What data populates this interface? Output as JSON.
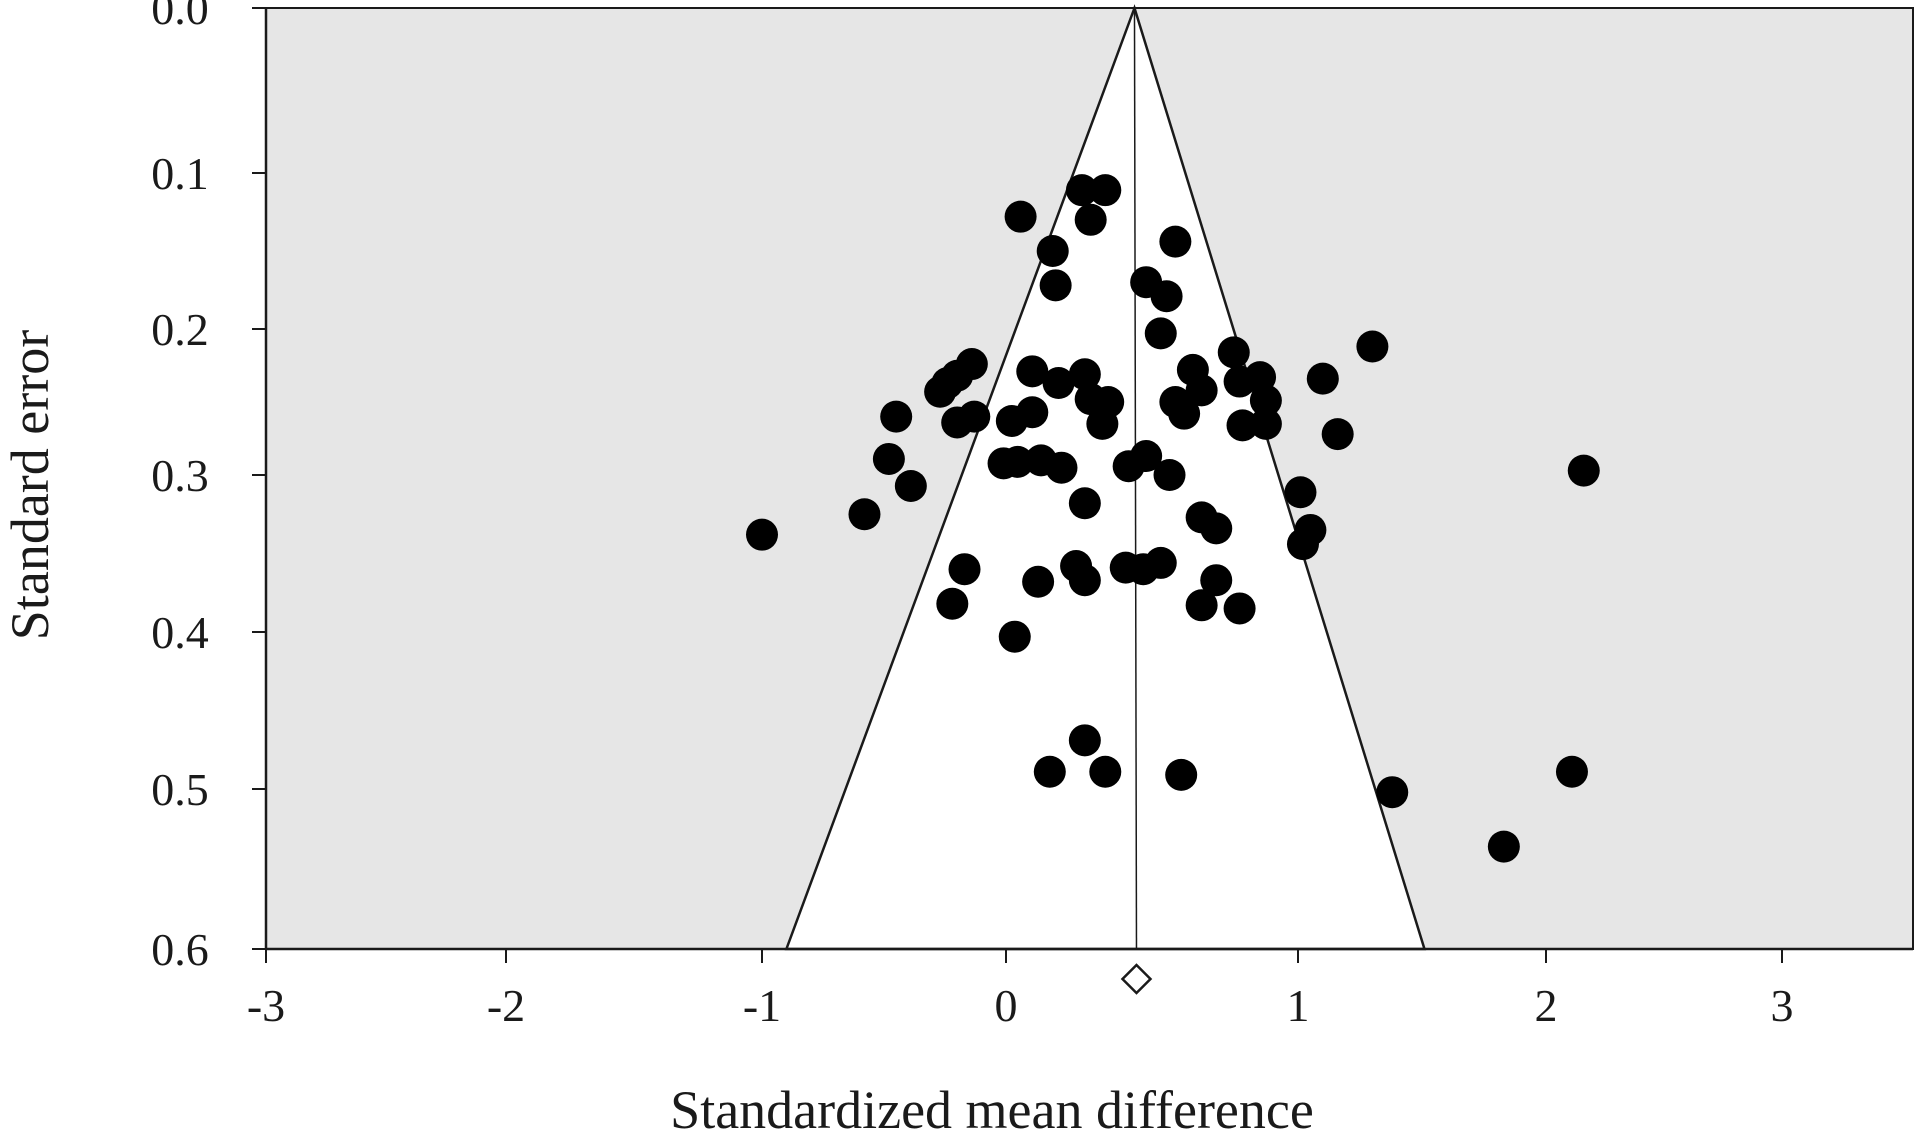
{
  "chart_data": {
    "type": "scatter",
    "subtype": "funnel-plot",
    "title": "",
    "xlabel": "Standardized mean difference",
    "ylabel": "Standard error",
    "xlim": [
      -3,
      3.5
    ],
    "ylim": [
      0,
      0.6
    ],
    "y_reversed": true,
    "x_ticks": [
      -3,
      -2,
      -1,
      0,
      1,
      2,
      3
    ],
    "x_tick_labels": [
      "-3",
      "-2",
      "-1",
      "0",
      "1",
      "2",
      "3"
    ],
    "y_ticks": [
      0,
      0.1,
      0.2,
      0.3,
      0.4,
      0.5,
      0.6
    ],
    "y_tick_labels": [
      "0.0",
      "0.1",
      "0.2",
      "0.3",
      "0.4",
      "0.5",
      "0.6"
    ],
    "pooled_estimate": 0.44,
    "funnel": {
      "apex": [
        0.44,
        0
      ],
      "base_left": [
        -0.9,
        0.6
      ],
      "base_right": [
        1.51,
        0.6
      ]
    },
    "colors": {
      "background": "#e6e6e6",
      "funnel_fill": "#ffffff",
      "points": "#000000",
      "lines": "#1a1a1a"
    },
    "points": [
      [
        0.26,
        0.111
      ],
      [
        0.34,
        0.111
      ],
      [
        0.05,
        0.128
      ],
      [
        0.29,
        0.13
      ],
      [
        0.58,
        0.144
      ],
      [
        0.16,
        0.15
      ],
      [
        0.17,
        0.172
      ],
      [
        0.48,
        0.17
      ],
      [
        0.55,
        0.179
      ],
      [
        0.53,
        0.203
      ],
      [
        1.3,
        0.212
      ],
      [
        0.78,
        0.216
      ],
      [
        -0.14,
        0.224
      ],
      [
        -0.2,
        0.232
      ],
      [
        0.09,
        0.229
      ],
      [
        0.27,
        0.231
      ],
      [
        0.64,
        0.228
      ],
      [
        0.87,
        0.233
      ],
      [
        1.1,
        0.234
      ],
      [
        -0.24,
        0.237
      ],
      [
        -0.27,
        0.243
      ],
      [
        0.18,
        0.237
      ],
      [
        0.8,
        0.236
      ],
      [
        0.67,
        0.242
      ],
      [
        0.29,
        0.248
      ],
      [
        0.35,
        0.25
      ],
      [
        0.58,
        0.25
      ],
      [
        0.89,
        0.249
      ],
      [
        -0.45,
        0.26
      ],
      [
        -0.2,
        0.264
      ],
      [
        -0.13,
        0.26
      ],
      [
        0.02,
        0.263
      ],
      [
        0.09,
        0.257
      ],
      [
        0.33,
        0.265
      ],
      [
        0.61,
        0.258
      ],
      [
        0.81,
        0.266
      ],
      [
        0.89,
        0.265
      ],
      [
        1.16,
        0.272
      ],
      [
        -0.48,
        0.289
      ],
      [
        -0.01,
        0.292
      ],
      [
        0.04,
        0.291
      ],
      [
        0.12,
        0.29
      ],
      [
        0.19,
        0.295
      ],
      [
        0.42,
        0.294
      ],
      [
        0.48,
        0.287
      ],
      [
        0.56,
        0.3
      ],
      [
        2.16,
        0.297
      ],
      [
        -0.39,
        0.307
      ],
      [
        -1.0,
        0.338
      ],
      [
        -0.58,
        0.325
      ],
      [
        1.01,
        0.311
      ],
      [
        0.27,
        0.318
      ],
      [
        0.67,
        0.327
      ],
      [
        0.72,
        0.334
      ],
      [
        1.05,
        0.335
      ],
      [
        1.02,
        0.344
      ],
      [
        -0.17,
        0.36
      ],
      [
        0.24,
        0.358
      ],
      [
        0.41,
        0.359
      ],
      [
        0.47,
        0.36
      ],
      [
        0.53,
        0.356
      ],
      [
        0.11,
        0.368
      ],
      [
        0.27,
        0.367
      ],
      [
        0.72,
        0.367
      ],
      [
        -0.22,
        0.382
      ],
      [
        0.67,
        0.383
      ],
      [
        0.8,
        0.385
      ],
      [
        0.03,
        0.403
      ],
      [
        0.27,
        0.469
      ],
      [
        0.15,
        0.489
      ],
      [
        0.34,
        0.489
      ],
      [
        0.6,
        0.491
      ],
      [
        1.38,
        0.502
      ],
      [
        2.11,
        0.489
      ],
      [
        1.83,
        0.536
      ]
    ]
  }
}
